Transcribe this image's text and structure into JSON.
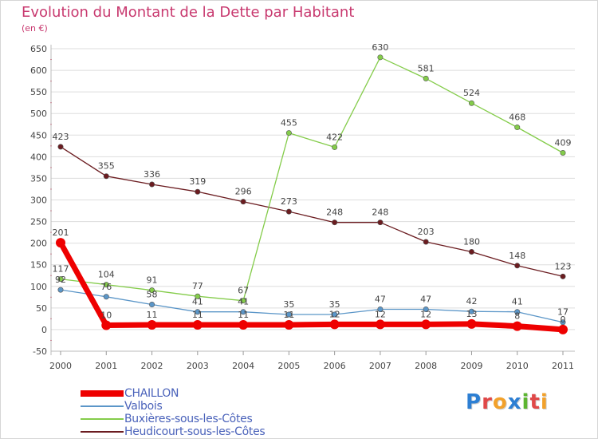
{
  "title": "Evolution du Montant de la Dette par Habitant",
  "unit_label": "(en €)",
  "logo_text": "Proxiti",
  "logo_colors": [
    "#2d7fd3",
    "#e04848",
    "#f2a12b",
    "#2d7fd3",
    "#5cb531",
    "#e04848",
    "#f2a12b"
  ],
  "chart_data": {
    "type": "line",
    "x": [
      "2000",
      "2001",
      "2002",
      "2003",
      "2004",
      "2005",
      "2006",
      "2007",
      "2008",
      "2009",
      "2010",
      "2011"
    ],
    "ylim": [
      -50,
      650
    ],
    "yticks": [
      "-50",
      "0",
      "50",
      "100",
      "150",
      "200",
      "250",
      "300",
      "350",
      "400",
      "450",
      "500",
      "550",
      "600",
      "650"
    ],
    "grid": "horizontal",
    "legend_position": "bottom-left",
    "series": [
      {
        "name": "Heudicourt-sous-les-Côtes",
        "color": "#6b1c20",
        "values": [
          423,
          355,
          336,
          319,
          296,
          273,
          248,
          248,
          203,
          180,
          148,
          123
        ],
        "labels": [
          "423",
          "355",
          "336",
          "319",
          "296",
          "273",
          "248",
          "248",
          "203",
          "180",
          "148",
          "123"
        ]
      },
      {
        "name": "Buxières-sous-les-Côtes",
        "color": "#84cc4a",
        "values": [
          117,
          104,
          91,
          77,
          67,
          455,
          422,
          630,
          581,
          524,
          468,
          409
        ],
        "labels": [
          "117",
          "104",
          "91",
          "77",
          "67",
          "455",
          "422",
          "630",
          "581",
          "524",
          "468",
          "409"
        ]
      },
      {
        "name": "Valbois",
        "color": "#5b96c8",
        "values": [
          92,
          76,
          58,
          41,
          41,
          35,
          35,
          47,
          47,
          42,
          41,
          17
        ],
        "labels": [
          "92",
          "76",
          "58",
          "41",
          "41",
          "35",
          "35",
          "47",
          "47",
          "42",
          "41",
          "17"
        ]
      },
      {
        "name": "CHAILLON",
        "color": "#ee0000",
        "values": [
          201,
          10,
          11,
          11,
          11,
          11,
          12,
          12,
          12,
          13,
          8,
          0
        ],
        "labels": [
          "201",
          "10",
          "11",
          "11",
          "11",
          "11",
          "12",
          "12",
          "12",
          "13",
          "8",
          "0"
        ]
      }
    ]
  },
  "legend": [
    {
      "label": "CHAILLON",
      "color": "#ee0000"
    },
    {
      "label": "Valbois",
      "color": "#5b96c8"
    },
    {
      "label": "Buxières-sous-les-Côtes",
      "color": "#84cc4a"
    },
    {
      "label": "Heudicourt-sous-les-Côtes",
      "color": "#6b1c20"
    }
  ]
}
